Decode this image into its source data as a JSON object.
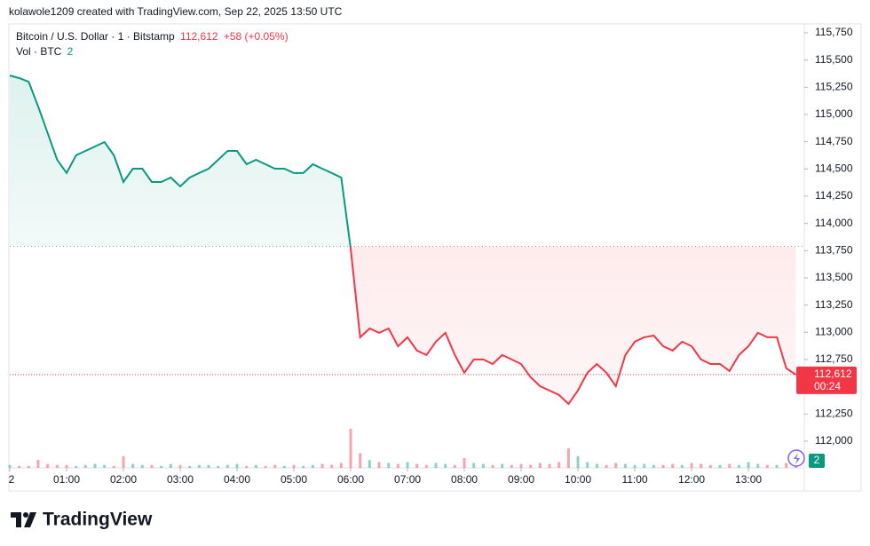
{
  "attribution": "kolawole1209 created with TradingView.com, Sep 22, 2025 13:50 UTC",
  "brand": "TradingView",
  "chart_data": {
    "type": "line",
    "symbol": "Bitcoin / U.S. Dollar · 1 · Bitstamp",
    "last_price": {
      "value": 112612,
      "label": "112,612"
    },
    "change": "+58 (+0.05%)",
    "countdown": "00:24",
    "volume_title": "Vol · BTC",
    "volume_label": "2",
    "baseline": 113790,
    "x": [
      "00:00",
      "00:10",
      "00:20",
      "00:30",
      "00:40",
      "00:50",
      "01:00",
      "01:10",
      "01:20",
      "01:30",
      "01:40",
      "01:50",
      "02:00",
      "02:10",
      "02:20",
      "02:30",
      "02:40",
      "02:50",
      "03:00",
      "03:10",
      "03:20",
      "03:30",
      "03:40",
      "03:50",
      "04:00",
      "04:10",
      "04:20",
      "04:30",
      "04:40",
      "04:50",
      "05:00",
      "05:10",
      "05:20",
      "05:30",
      "05:40",
      "05:50",
      "06:00",
      "06:10",
      "06:20",
      "06:30",
      "06:40",
      "06:50",
      "07:00",
      "07:10",
      "07:20",
      "07:30",
      "07:40",
      "07:50",
      "08:00",
      "08:10",
      "08:20",
      "08:30",
      "08:40",
      "08:50",
      "09:00",
      "09:10",
      "09:20",
      "09:30",
      "09:40",
      "09:50",
      "10:00",
      "10:10",
      "10:20",
      "10:30",
      "10:40",
      "10:50",
      "11:00",
      "11:10",
      "11:20",
      "11:30",
      "11:40",
      "11:50",
      "12:00",
      "12:10",
      "12:20",
      "12:30",
      "12:40",
      "12:50",
      "13:00",
      "13:10",
      "13:20",
      "13:30",
      "13:40",
      "13:50"
    ],
    "series": [
      {
        "name": "BTCUSD",
        "up_color": "#089981",
        "down_color": "#f23645",
        "values": [
          115358,
          115334,
          115300,
          115073,
          114829,
          114585,
          114462,
          114625,
          114665,
          114706,
          114747,
          114625,
          114380,
          114502,
          114502,
          114380,
          114380,
          114421,
          114340,
          114421,
          114462,
          114502,
          114584,
          114665,
          114665,
          114543,
          114584,
          114543,
          114502,
          114502,
          114462,
          114462,
          114543,
          114502,
          114462,
          114421,
          113769,
          112954,
          113035,
          112995,
          113035,
          112872,
          112954,
          112832,
          112791,
          112913,
          112995,
          112791,
          112628,
          112750,
          112750,
          112709,
          112791,
          112750,
          112709,
          112587,
          112505,
          112465,
          112424,
          112342,
          112465,
          112628,
          112709,
          112628,
          112505,
          112791,
          112913,
          112954,
          112970,
          112872,
          112832,
          112913,
          112872,
          112750,
          112709,
          112709,
          112644,
          112791,
          112872,
          112995,
          112954,
          112954,
          112669,
          112612
        ]
      }
    ],
    "volume": {
      "ylim": [
        0,
        100
      ],
      "values": [
        3,
        2,
        2,
        8,
        4,
        3,
        3,
        2,
        3,
        4,
        3,
        2,
        12,
        4,
        3,
        3,
        2,
        4,
        3,
        2,
        3,
        3,
        2,
        3,
        4,
        2,
        3,
        2,
        3,
        2,
        3,
        2,
        3,
        4,
        3,
        5,
        40,
        15,
        8,
        6,
        5,
        4,
        6,
        4,
        3,
        5,
        4,
        3,
        10,
        5,
        4,
        3,
        4,
        3,
        4,
        3,
        5,
        4,
        6,
        20,
        12,
        6,
        4,
        3,
        5,
        4,
        3,
        4,
        3,
        3,
        4,
        3,
        5,
        4,
        3,
        3,
        4,
        3,
        6,
        4,
        3,
        3,
        5,
        2
      ]
    },
    "xlim": [
      "00:00",
      "13:59"
    ],
    "xticks": [
      {
        "value": "00:00",
        "label": "2"
      },
      "01:00",
      "02:00",
      "03:00",
      "04:00",
      "05:00",
      "06:00",
      "07:00",
      "08:00",
      "09:00",
      "10:00",
      "11:00",
      "12:00",
      "13:00"
    ],
    "ylim": [
      111755,
      115831
    ],
    "yticks": [
      {
        "value": 112000,
        "label": "112,000"
      },
      {
        "value": 112250,
        "label": "112,250"
      },
      {
        "value": 112500,
        "label": "112,500"
      },
      {
        "value": 112750,
        "label": "112,750"
      },
      {
        "value": 113000,
        "label": "113,000"
      },
      {
        "value": 113250,
        "label": "113,250"
      },
      {
        "value": 113500,
        "label": "113,500"
      },
      {
        "value": 113750,
        "label": "113,750"
      },
      {
        "value": 114000,
        "label": "114,000"
      },
      {
        "value": 114250,
        "label": "114,250"
      },
      {
        "value": 114500,
        "label": "114,500"
      },
      {
        "value": 114750,
        "label": "114,750"
      },
      {
        "value": 115000,
        "label": "115,000"
      },
      {
        "value": 115250,
        "label": "115,250"
      },
      {
        "value": 115500,
        "label": "115,500"
      },
      {
        "value": 115750,
        "label": "115,750"
      }
    ],
    "grid": false
  }
}
